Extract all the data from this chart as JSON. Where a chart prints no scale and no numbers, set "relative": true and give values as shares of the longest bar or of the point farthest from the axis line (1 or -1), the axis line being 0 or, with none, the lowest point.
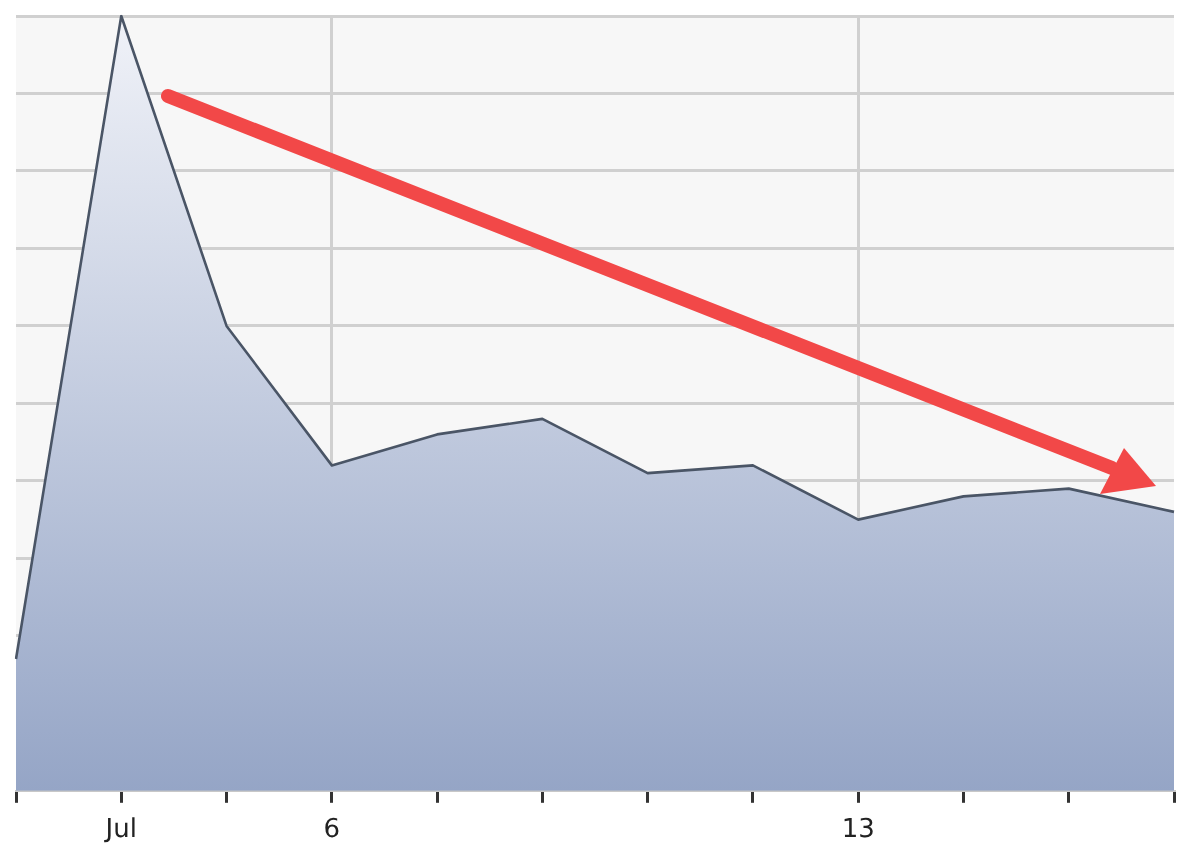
{
  "chart_data": {
    "type": "area",
    "categories": [
      null,
      "Jul",
      null,
      "6",
      null,
      null,
      null,
      null,
      "13",
      null,
      null,
      null
    ],
    "values": [
      0.17,
      1,
      0.6,
      0.42,
      0.46,
      0.48,
      0.41,
      0.42,
      0.35,
      0.38,
      0.39,
      0.36
    ],
    "color": "#95a5c6",
    "relative": true,
    "grid": true
  }
}
